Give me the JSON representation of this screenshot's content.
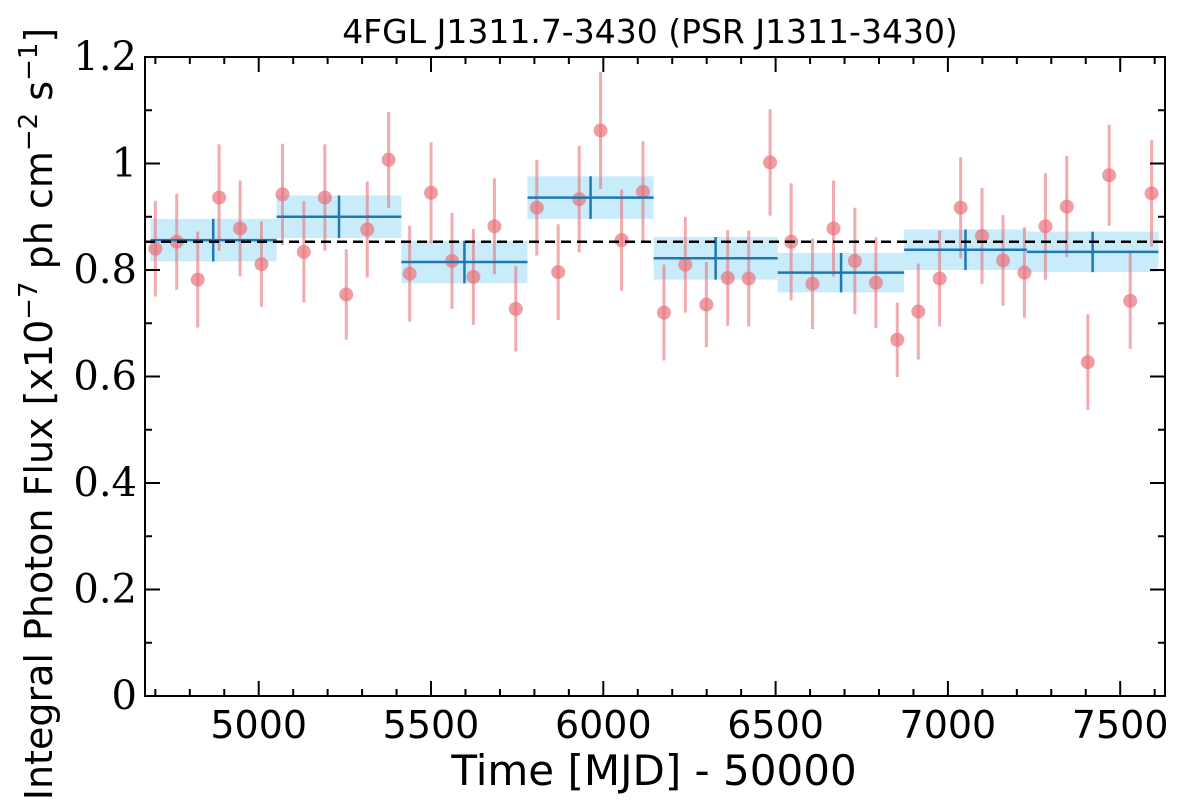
{
  "chart_data": {
    "type": "scatter",
    "title": "4FGL J1311.7-3430 (PSR J1311-3430)",
    "xlabel": "Time [MJD] - 50000",
    "ylabel": {
      "prefix": "Integral Photon Flux [x10",
      "exp1": "−7",
      "mid": " ph cm",
      "exp2": "−2",
      "mid2": " s",
      "exp3": "−1",
      "suffix": "]"
    },
    "xlim": [
      4670,
      7630
    ],
    "ylim": [
      0,
      1.2
    ],
    "xticks": [
      5000,
      5500,
      6000,
      6500,
      7000,
      7500
    ],
    "yticks": [
      0,
      0.2,
      0.4,
      0.6,
      0.8,
      1.0,
      1.2
    ],
    "ytick_labels": [
      "0",
      "0.2",
      "0.4",
      "0.6",
      "0.8",
      "1",
      "1.2"
    ],
    "mean_flux": 0.853,
    "colors": {
      "points": "#e8737a",
      "bins": "#1f77b4",
      "band": "#c9ecfb",
      "mean_line": "#000000"
    },
    "series": [
      {
        "kind": "short_term_points",
        "x": [
          4700,
          4762,
          4823,
          4885,
          4946,
          5008,
          5069,
          5131,
          5192,
          5254,
          5315,
          5377,
          5438,
          5500,
          5561,
          5623,
          5684,
          5746,
          5807,
          5869,
          5930,
          5992,
          6053,
          6115,
          6176,
          6238,
          6299,
          6361,
          6422,
          6484,
          6545,
          6607,
          6668,
          6730,
          6791,
          6853,
          6914,
          6976,
          7037,
          7099,
          7160,
          7222,
          7283,
          7345,
          7406,
          7468,
          7529,
          7591
        ],
        "y": [
          0.84,
          0.853,
          0.782,
          0.936,
          0.878,
          0.811,
          0.942,
          0.834,
          0.936,
          0.754,
          0.876,
          1.007,
          0.793,
          0.945,
          0.817,
          0.787,
          0.882,
          0.727,
          0.917,
          0.796,
          0.933,
          1.062,
          0.856,
          0.947,
          0.72,
          0.81,
          0.735,
          0.785,
          0.784,
          1.002,
          0.853,
          0.774,
          0.878,
          0.817,
          0.776,
          0.669,
          0.722,
          0.784,
          0.917,
          0.864,
          0.818,
          0.795,
          0.882,
          0.919,
          0.627,
          0.978,
          0.742,
          0.944
        ],
        "err": [
          0.09,
          0.09,
          0.09,
          0.1,
          0.09,
          0.08,
          0.095,
          0.095,
          0.1,
          0.085,
          0.09,
          0.09,
          0.09,
          0.095,
          0.09,
          0.09,
          0.09,
          0.08,
          0.09,
          0.09,
          0.1,
          0.11,
          0.095,
          0.095,
          0.09,
          0.09,
          0.08,
          0.09,
          0.09,
          0.1,
          0.11,
          0.085,
          0.09,
          0.1,
          0.085,
          0.07,
          0.09,
          0.09,
          0.095,
          0.09,
          0.085,
          0.085,
          0.1,
          0.095,
          0.09,
          0.095,
          0.09,
          0.1
        ]
      },
      {
        "kind": "long_term_bins",
        "x_start": [
          4686,
          5052,
          5414,
          5780,
          6146,
          6506,
          6873,
          7229
        ],
        "x_end": [
          5052,
          5414,
          5780,
          6146,
          6506,
          6873,
          7229,
          7611
        ],
        "x_center": [
          4868,
          5233,
          5597,
          5963,
          6326,
          6690,
          7051,
          7420
        ],
        "y": [
          0.856,
          0.9,
          0.815,
          0.936,
          0.822,
          0.795,
          0.838,
          0.834
        ],
        "err": [
          0.04,
          0.04,
          0.04,
          0.04,
          0.04,
          0.037,
          0.038,
          0.038
        ]
      }
    ]
  }
}
